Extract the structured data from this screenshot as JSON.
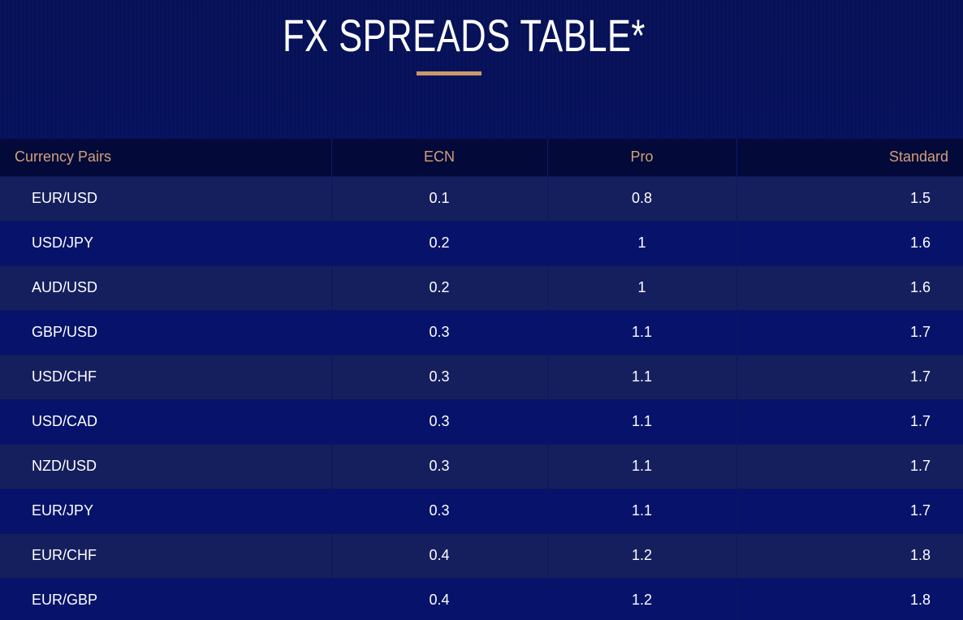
{
  "page": {
    "title": "FX SPREADS TABLE*",
    "accent_color": "#c9996a",
    "header_text_color": "#d3a074",
    "background_color": "#07136a"
  },
  "table": {
    "columns": [
      "Currency Pairs",
      "ECN",
      "Pro",
      "Standard"
    ],
    "rows": [
      {
        "pair": "EUR/USD",
        "ecn": "0.1",
        "pro": "0.8",
        "standard": "1.5"
      },
      {
        "pair": "USD/JPY",
        "ecn": "0.2",
        "pro": "1",
        "standard": "1.6"
      },
      {
        "pair": "AUD/USD",
        "ecn": "0.2",
        "pro": "1",
        "standard": "1.6"
      },
      {
        "pair": "GBP/USD",
        "ecn": "0.3",
        "pro": "1.1",
        "standard": "1.7"
      },
      {
        "pair": "USD/CHF",
        "ecn": "0.3",
        "pro": "1.1",
        "standard": "1.7"
      },
      {
        "pair": "USD/CAD",
        "ecn": "0.3",
        "pro": "1.1",
        "standard": "1.7"
      },
      {
        "pair": "NZD/USD",
        "ecn": "0.3",
        "pro": "1.1",
        "standard": "1.7"
      },
      {
        "pair": "EUR/JPY",
        "ecn": "0.3",
        "pro": "1.1",
        "standard": "1.7"
      },
      {
        "pair": "EUR/CHF",
        "ecn": "0.4",
        "pro": "1.2",
        "standard": "1.8"
      },
      {
        "pair": "EUR/GBP",
        "ecn": "0.4",
        "pro": "1.2",
        "standard": "1.8"
      }
    ]
  }
}
